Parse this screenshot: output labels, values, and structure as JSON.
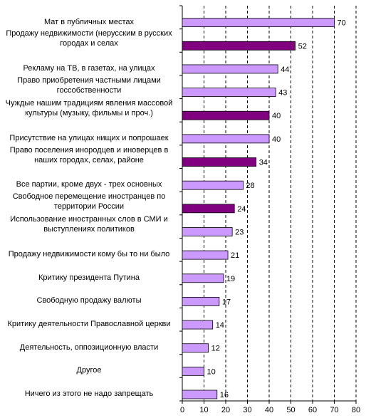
{
  "chart_data": {
    "type": "bar",
    "orientation": "horizontal",
    "title": "",
    "xlabel": "",
    "ylabel": "",
    "xlim": [
      0,
      80
    ],
    "x_ticks": [
      "0",
      "10",
      "20",
      "30",
      "40",
      "50",
      "60",
      "70",
      "80"
    ],
    "grid": "vertical dashed",
    "categories": [
      "Мат в публичных местах",
      "Продажу недвижимости (нерусским в русских городах и селах",
      "Рекламу на ТВ, в газетах, на улицах",
      "Право приобретения частными лицами госсобственности",
      "Чуждые нашим традициям явления массовой культуры (музыку, фильмы и проч.)",
      "Присутствие на улицах нищих и попрошаек",
      "Право поселения инородцев и иноверцев в наших городах, селах, районе",
      "Все партии, кроме двух - трех основных",
      "Свободное перемещение иностранцев по территории России",
      "Использование иностранных слов в СМИ и выступлениях политиков",
      "Продажу недвижимости кому бы то ни было",
      "Критику президента Путина",
      "Свободную продажу  валюты",
      "Критику деятельности Православной церкви",
      "Деятельность, оппозиционную власти",
      "Другое",
      "Ничего из этого не надо запрещать"
    ],
    "label_lines": [
      [
        "Мат в публичных местах"
      ],
      [
        "Продажу недвижимости (нерусским в русских",
        "городах и селах"
      ],
      [
        "Рекламу на ТВ, в газетах, на улицах"
      ],
      [
        "Право приобретения частными лицами",
        "госсобственности"
      ],
      [
        "Чуждые нашим традициям явления массовой",
        "культуры (музыку, фильмы и проч.)"
      ],
      [
        "Присутствие на улицах нищих и попрошаек"
      ],
      [
        "Право поселения инородцев и иноверцев в",
        "наших городах, селах, районе"
      ],
      [
        "Все партии, кроме двух - трех основных"
      ],
      [
        "Свободное перемещение иностранцев по",
        "территории России"
      ],
      [
        "Использование иностранных слов в СМИ и",
        "выступлениях политиков"
      ],
      [
        "Продажу недвижимости кому бы то ни было"
      ],
      [
        "Критику президента Путина"
      ],
      [
        "Свободную продажу  валюты"
      ],
      [
        "Критику деятельности Православной церкви"
      ],
      [
        "Деятельность, оппозиционную власти"
      ],
      [
        "Другое"
      ],
      [
        "Ничего из этого не надо запрещать"
      ]
    ],
    "values": [
      70,
      52,
      44,
      43,
      40,
      40,
      34,
      28,
      24,
      23,
      21,
      19,
      17,
      14,
      12,
      10,
      16
    ],
    "value_labels": [
      "70",
      "52",
      "44",
      "43",
      "40",
      "40",
      "34",
      "28",
      "24",
      "23",
      "21",
      "19",
      "17",
      "14",
      "12",
      "10",
      "16"
    ],
    "highlight": [
      false,
      true,
      false,
      false,
      true,
      false,
      true,
      false,
      true,
      false,
      false,
      false,
      false,
      false,
      false,
      false,
      false
    ],
    "colors": {
      "normal": "#cc99ff",
      "highlight": "#800080",
      "edge": "#000000",
      "grid": "#000000"
    }
  }
}
